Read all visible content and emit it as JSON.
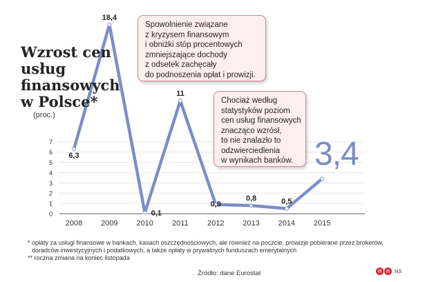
{
  "header": {
    "title_lines": [
      "Wzrost cen",
      "usług",
      "finansowych",
      "w Polsce"
    ],
    "title_marker": "*",
    "subtitle": "(proc.)"
  },
  "callouts": [
    {
      "lines": [
        "Spowolnienie związane",
        "z kryzysem finansowym",
        "i obniżki stóp procentowych",
        "zmniejszające dochody",
        "z odsetek zachęcały",
        "do podnoszenia opłat i prowizji."
      ]
    },
    {
      "lines": [
        "Chociaż według",
        "statystyków poziom",
        "cen usług finansowych",
        "znacząco wzrósł,",
        "to nie znalazło to",
        "odzwierciedlenia",
        "w wynikach banków."
      ]
    }
  ],
  "highlight_value": "3,4",
  "footnotes": [
    "* opłaty za usługi finansowe w bankach, kasach oszczędnościowych, ale również na poczcie, prowizje pobierane przez brokerów,",
    "  doradców inwestycyjnych i podatkowych, a także opłaty w prywatnych funduszach emerytalnych",
    "** roczna zmiana na koniec listopada"
  ],
  "source": "Źródło: dane Eurostat",
  "logo": {
    "glyphs": [
      "℗",
      "℗"
    ],
    "text": "NS"
  },
  "colors": {
    "line": "#7b8ec8",
    "line_outline": "#ffffff",
    "callout_border": "#c9848a",
    "callout_fill": "#ffeef0",
    "big_value": "#7a8cc4",
    "grid": "#e6e6e6"
  },
  "chart_data": {
    "type": "line",
    "title": "Wzrost cen usług finansowych w Polsce*",
    "ylabel": "(proc.)",
    "categories": [
      "2008",
      "2009",
      "2010",
      "2011",
      "2012",
      "2013",
      "2014",
      "2015"
    ],
    "values": [
      6.3,
      18.4,
      0.1,
      11,
      0.9,
      0.8,
      0.5,
      3.4
    ],
    "value_labels": [
      "6,3",
      "18,4",
      "0,1",
      "11",
      "0,9",
      "0,8",
      "0,5",
      ""
    ],
    "yticks": [
      "0",
      "1",
      "2",
      "3",
      "4",
      "5",
      "6",
      "7"
    ],
    "ylim": [
      0,
      18.4
    ],
    "grid": true
  }
}
